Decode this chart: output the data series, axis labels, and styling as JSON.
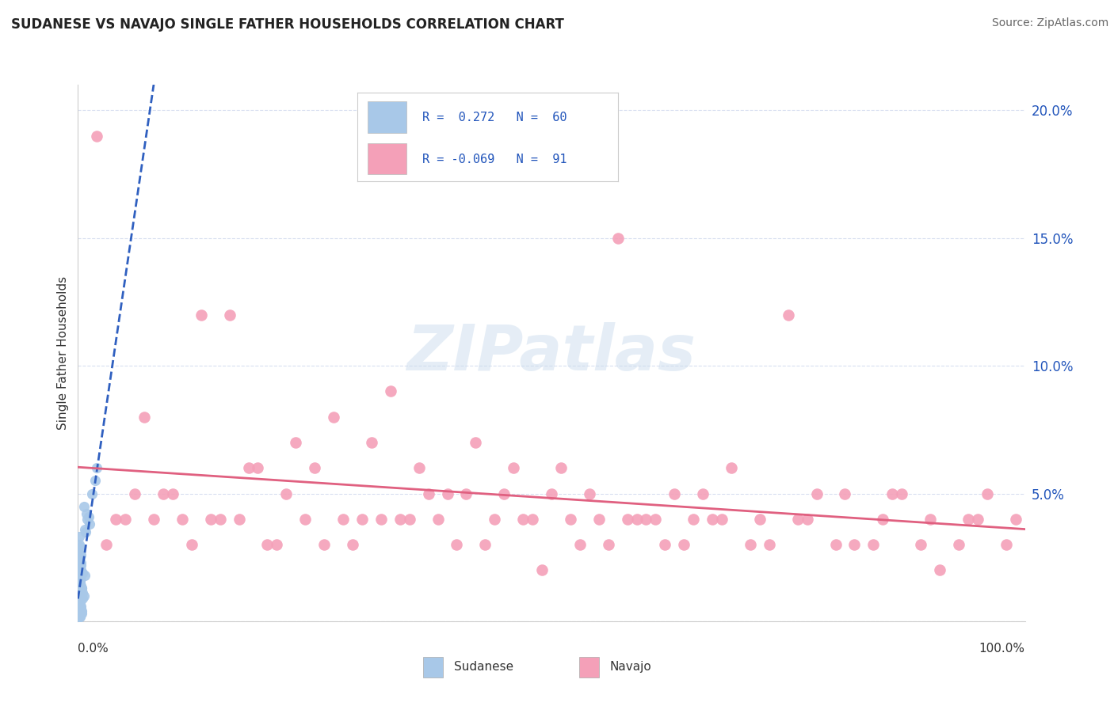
{
  "title": "SUDANESE VS NAVAJO SINGLE FATHER HOUSEHOLDS CORRELATION CHART",
  "source": "Source: ZipAtlas.com",
  "ylabel": "Single Father Households",
  "xlim": [
    0.0,
    1.0
  ],
  "ylim": [
    0.0,
    0.21
  ],
  "sudanese_R": 0.272,
  "sudanese_N": 60,
  "navajo_R": -0.069,
  "navajo_N": 91,
  "sudanese_color": "#a8c8e8",
  "navajo_color": "#f4a0b8",
  "sudanese_trend_color": "#3060c0",
  "navajo_trend_color": "#e06080",
  "background_color": "#ffffff",
  "grid_color": "#d8dff0",
  "legend_text_color": "#2255bb",
  "ytick_vals": [
    0.0,
    0.05,
    0.1,
    0.15,
    0.2
  ],
  "ytick_labels": [
    "",
    "5.0%",
    "10.0%",
    "15.0%",
    "20.0%"
  ],
  "sudanese_x": [
    0.001,
    0.002,
    0.001,
    0.003,
    0.002,
    0.001,
    0.004,
    0.003,
    0.002,
    0.001,
    0.005,
    0.002,
    0.003,
    0.001,
    0.002,
    0.004,
    0.003,
    0.001,
    0.002,
    0.003,
    0.006,
    0.002,
    0.001,
    0.003,
    0.004,
    0.002,
    0.001,
    0.003,
    0.005,
    0.002,
    0.001,
    0.002,
    0.003,
    0.001,
    0.004,
    0.002,
    0.003,
    0.001,
    0.002,
    0.003,
    0.007,
    0.001,
    0.002,
    0.003,
    0.001,
    0.005,
    0.002,
    0.001,
    0.003,
    0.002,
    0.01,
    0.008,
    0.006,
    0.012,
    0.009,
    0.015,
    0.007,
    0.018,
    0.011,
    0.02
  ],
  "sudanese_y": [
    0.005,
    0.008,
    0.012,
    0.003,
    0.015,
    0.007,
    0.004,
    0.01,
    0.006,
    0.002,
    0.009,
    0.011,
    0.004,
    0.016,
    0.007,
    0.013,
    0.003,
    0.018,
    0.006,
    0.014,
    0.01,
    0.002,
    0.008,
    0.012,
    0.003,
    0.016,
    0.019,
    0.006,
    0.011,
    0.002,
    0.021,
    0.009,
    0.005,
    0.024,
    0.013,
    0.017,
    0.022,
    0.028,
    0.025,
    0.02,
    0.018,
    0.03,
    0.027,
    0.023,
    0.033,
    0.019,
    0.029,
    0.024,
    0.026,
    0.016,
    0.04,
    0.035,
    0.045,
    0.038,
    0.042,
    0.05,
    0.036,
    0.055,
    0.041,
    0.06
  ],
  "navajo_x": [
    0.02,
    0.04,
    0.07,
    0.1,
    0.13,
    0.16,
    0.19,
    0.22,
    0.25,
    0.28,
    0.31,
    0.33,
    0.36,
    0.39,
    0.42,
    0.45,
    0.48,
    0.51,
    0.54,
    0.57,
    0.6,
    0.63,
    0.66,
    0.69,
    0.72,
    0.75,
    0.78,
    0.81,
    0.84,
    0.87,
    0.9,
    0.93,
    0.96,
    0.99,
    0.05,
    0.09,
    0.14,
    0.18,
    0.23,
    0.27,
    0.32,
    0.37,
    0.41,
    0.46,
    0.5,
    0.55,
    0.59,
    0.64,
    0.68,
    0.73,
    0.77,
    0.82,
    0.86,
    0.91,
    0.95,
    0.03,
    0.08,
    0.12,
    0.17,
    0.21,
    0.26,
    0.3,
    0.35,
    0.4,
    0.44,
    0.49,
    0.53,
    0.58,
    0.62,
    0.67,
    0.71,
    0.76,
    0.8,
    0.85,
    0.89,
    0.94,
    0.98,
    0.06,
    0.11,
    0.15,
    0.2,
    0.24,
    0.29,
    0.34,
    0.38,
    0.43,
    0.47,
    0.52,
    0.56,
    0.61,
    0.65
  ],
  "navajo_y": [
    0.19,
    0.04,
    0.08,
    0.05,
    0.12,
    0.12,
    0.06,
    0.05,
    0.06,
    0.04,
    0.07,
    0.09,
    0.06,
    0.05,
    0.07,
    0.05,
    0.04,
    0.06,
    0.05,
    0.15,
    0.04,
    0.05,
    0.05,
    0.06,
    0.04,
    0.12,
    0.05,
    0.05,
    0.03,
    0.05,
    0.04,
    0.03,
    0.05,
    0.04,
    0.04,
    0.05,
    0.04,
    0.06,
    0.07,
    0.08,
    0.04,
    0.05,
    0.05,
    0.06,
    0.05,
    0.04,
    0.04,
    0.03,
    0.04,
    0.03,
    0.04,
    0.03,
    0.05,
    0.02,
    0.04,
    0.03,
    0.04,
    0.03,
    0.04,
    0.03,
    0.03,
    0.04,
    0.04,
    0.03,
    0.04,
    0.02,
    0.03,
    0.04,
    0.03,
    0.04,
    0.03,
    0.04,
    0.03,
    0.04,
    0.03,
    0.04,
    0.03,
    0.05,
    0.04,
    0.04,
    0.03,
    0.04,
    0.03,
    0.04,
    0.04,
    0.03,
    0.04,
    0.04,
    0.03,
    0.04,
    0.04
  ]
}
